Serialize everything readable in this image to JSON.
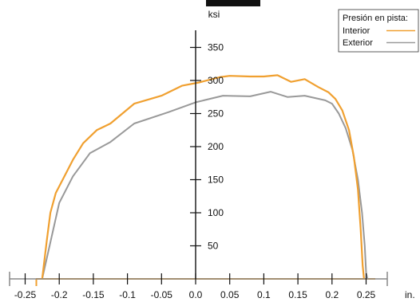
{
  "chart_data": {
    "type": "line",
    "ylabel": "ksi",
    "xlabel": "in.",
    "xlim": [
      -0.27,
      0.29
    ],
    "ylim": [
      0,
      350
    ],
    "x_ticks": [
      -0.25,
      -0.2,
      -0.15,
      -0.1,
      -0.05,
      0.0,
      0.05,
      0.1,
      0.15,
      0.2,
      0.25
    ],
    "x_tick_labels": [
      "-0.25",
      "-0.2",
      "-0.15",
      "-0.1",
      "-0.05",
      "0.0",
      "0.05",
      "0.1",
      "0.15",
      "0.2",
      "0.25"
    ],
    "y_ticks": [
      50,
      100,
      150,
      200,
      250,
      300,
      350
    ],
    "y_tick_labels": [
      "50",
      "100",
      "150",
      "200",
      "250",
      "300",
      "350"
    ],
    "grid": false,
    "legend": {
      "title": "Presión en pista:",
      "placement": "top-right"
    },
    "series": [
      {
        "name": "Interior",
        "color": "#F0A030",
        "points": [
          [
            -0.225,
            0
          ],
          [
            -0.218,
            60
          ],
          [
            -0.213,
            100
          ],
          [
            -0.205,
            130
          ],
          [
            -0.195,
            150
          ],
          [
            -0.18,
            180
          ],
          [
            -0.165,
            205
          ],
          [
            -0.145,
            225
          ],
          [
            -0.125,
            235
          ],
          [
            -0.09,
            265
          ],
          [
            -0.05,
            277
          ],
          [
            -0.02,
            292
          ],
          [
            0.005,
            297
          ],
          [
            0.035,
            305
          ],
          [
            0.05,
            307
          ],
          [
            0.08,
            306
          ],
          [
            0.1,
            306
          ],
          [
            0.12,
            308
          ],
          [
            0.14,
            298
          ],
          [
            0.16,
            302
          ],
          [
            0.18,
            290
          ],
          [
            0.195,
            282
          ],
          [
            0.205,
            272
          ],
          [
            0.215,
            255
          ],
          [
            0.225,
            225
          ],
          [
            0.232,
            185
          ],
          [
            0.238,
            135
          ],
          [
            0.242,
            75
          ],
          [
            0.245,
            20
          ],
          [
            0.247,
            0
          ]
        ]
      },
      {
        "name": "Exterior",
        "color": "#999999",
        "points": [
          [
            -0.225,
            0
          ],
          [
            -0.2,
            115
          ],
          [
            -0.18,
            155
          ],
          [
            -0.155,
            190
          ],
          [
            -0.125,
            207
          ],
          [
            -0.09,
            235
          ],
          [
            -0.04,
            252
          ],
          [
            0.0,
            267
          ],
          [
            0.04,
            277
          ],
          [
            0.08,
            276
          ],
          [
            0.11,
            283
          ],
          [
            0.135,
            275
          ],
          [
            0.16,
            277
          ],
          [
            0.19,
            270
          ],
          [
            0.2,
            265
          ],
          [
            0.21,
            250
          ],
          [
            0.22,
            228
          ],
          [
            0.23,
            195
          ],
          [
            0.238,
            150
          ],
          [
            0.244,
            100
          ],
          [
            0.248,
            50
          ],
          [
            0.25,
            10
          ],
          [
            0.252,
            0
          ]
        ]
      }
    ],
    "baseline_series_color": "#F0A030",
    "baseline_range": [
      -0.27,
      0.29
    ]
  }
}
